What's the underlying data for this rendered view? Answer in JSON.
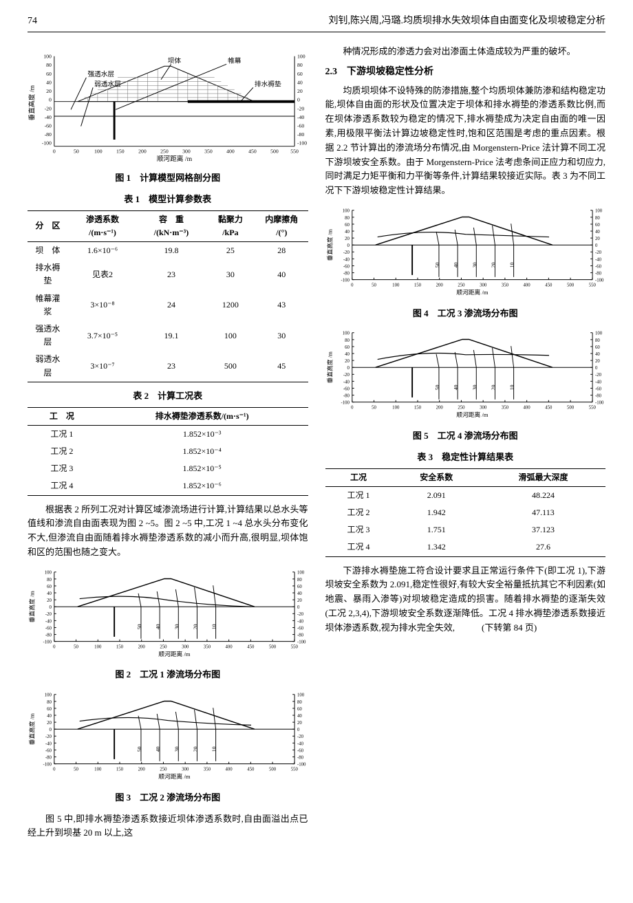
{
  "page_number": "74",
  "header_title": "刘钊,陈兴周,冯璐.均质坝排水失效坝体自由面变化及坝坡稳定分析",
  "fig1": {
    "caption": "图 1　计算模型网格剖分图",
    "xlabel": "顺河距离 /m",
    "ylabel": "垂直高度 /m",
    "xlim": [
      0,
      550
    ],
    "xtick_step": 50,
    "ylim_left": [
      -100,
      100
    ],
    "ylim_right": [
      -100,
      100
    ],
    "ytick_step": 20,
    "labels": {
      "strong_layer": "强透水层",
      "weak_layer": "弱透水层",
      "dam_body": "坝体",
      "curtain": "帷幕",
      "drain_blanket": "排水褥垫"
    },
    "colors": {
      "bg": "#ffffff",
      "line": "#000000",
      "hatch": "#888888"
    }
  },
  "table1": {
    "caption": "表 1　模型计算参数表",
    "columns": [
      "分　区",
      "渗透系数 /(m·s⁻¹)",
      "容　重 /(kN·m⁻³)",
      "黏聚力 /kPa",
      "内摩擦角 /(°)"
    ],
    "rows": [
      [
        "坝　体",
        "1.6×10⁻⁶",
        "19.8",
        "25",
        "28"
      ],
      [
        "排水褥垫",
        "见表2",
        "23",
        "30",
        "40"
      ],
      [
        "帷幕灌浆",
        "3×10⁻⁸",
        "24",
        "1200",
        "43"
      ],
      [
        "强透水层",
        "3.7×10⁻⁵",
        "19.1",
        "100",
        "30"
      ],
      [
        "弱透水层",
        "3×10⁻⁷",
        "23",
        "500",
        "45"
      ]
    ]
  },
  "table2": {
    "caption": "表 2　计算工况表",
    "columns": [
      "工　况",
      "排水褥垫渗透系数/(m·s⁻¹)"
    ],
    "rows": [
      [
        "工况 1",
        "1.852×10⁻³"
      ],
      [
        "工况 2",
        "1.852×10⁻⁴"
      ],
      [
        "工况 3",
        "1.852×10⁻⁵"
      ],
      [
        "工况 4",
        "1.852×10⁻⁶"
      ]
    ]
  },
  "para_left_1": "根据表 2 所列工况对计算区域渗流场进行计算,计算结果以总水头等值线和渗流自由面表现为图 2 ~5。图 2 ~5 中,工况 1 ~4 总水头分布变化不大,但渗流自由面随着排水褥垫渗透系数的减小而升高,很明显,坝体饱和区的范围也随之变大。",
  "fig2": {
    "caption": "图 2　工况 1 渗流场分布图",
    "xlabel": "顺河距离 /m",
    "ylabel": "垂直高度 /m"
  },
  "fig3": {
    "caption": "图 3　工况 2 渗流场分布图",
    "xlabel": "顺河距离 /m",
    "ylabel": "垂直高度 /m"
  },
  "para_left_2": "图 5 中,即排水褥垫渗透系数接近坝体渗透系数时,自由面溢出点已经上升到坝基 20 m 以上,这",
  "seepage_chart_style": {
    "xlim": [
      0,
      550
    ],
    "xtick_step": 50,
    "ylim": [
      -100,
      100
    ],
    "ytick_step": 20,
    "line_color": "#000000",
    "bg": "#ffffff",
    "contour_labels": [
      "50",
      "40",
      "30",
      "20",
      "10"
    ],
    "label_fontsize": 9
  },
  "para_right_1": "种情况形成的渗透力会对出渗面土体造成较为严重的破坏。",
  "section_2_3": "2.3　下游坝坡稳定性分析",
  "para_right_2": "均质坝坝体不设特殊的防渗措施,整个均质坝体兼防渗和结构稳定功能,坝体自由面的形状及位置决定于坝体和排水褥垫的渗透系数比例,而在坝体渗透系数较为稳定的情况下,排水褥垫成为决定自由面的唯一因素,用极限平衡法计算边坡稳定性时,饱和区范围是考虑的重点因素。根据 2.2 节计算出的渗流场分布情况,由 Morgenstern-Price 法计算不同工况下游坝坡安全系数。由于 Morgenstern-Price 法考虑条间正应力和切应力,同时满足力矩平衡和力平衡等条件,计算结果较接近实际。表 3 为不同工况下下游坝坡稳定性计算结果。",
  "fig4": {
    "caption": "图 4　工况 3 渗流场分布图",
    "xlabel": "顺河距离 /m",
    "ylabel": "垂直高度 /m"
  },
  "fig5": {
    "caption": "图 5　工况 4 渗流场分布图",
    "xlabel": "顺河距离 /m",
    "ylabel": "垂直高度 /m"
  },
  "table3": {
    "caption": "表 3　稳定性计算结果表",
    "columns": [
      "工况",
      "安全系数",
      "滑弧最大深度"
    ],
    "rows": [
      [
        "工况 1",
        "2.091",
        "48.224"
      ],
      [
        "工况 2",
        "1.942",
        "47.113"
      ],
      [
        "工况 3",
        "1.751",
        "37.123"
      ],
      [
        "工况 4",
        "1.342",
        "27.6"
      ]
    ]
  },
  "para_right_3": "下游排水褥垫施工符合设计要求且正常运行条件下(即工况 1),下游坝坡安全系数为 2.091,稳定性很好,有较大安全裕量抵抗其它不利因素(如地震、暴雨入渗等)对坝坡稳定造成的损害。随着排水褥垫的逐渐失效(工况 2,3,4),下游坝坡安全系数逐渐降低。工况 4 排水褥垫渗透系数接近坝体渗透系数,视为排水完全失效,　　　(下转第 84 页)"
}
